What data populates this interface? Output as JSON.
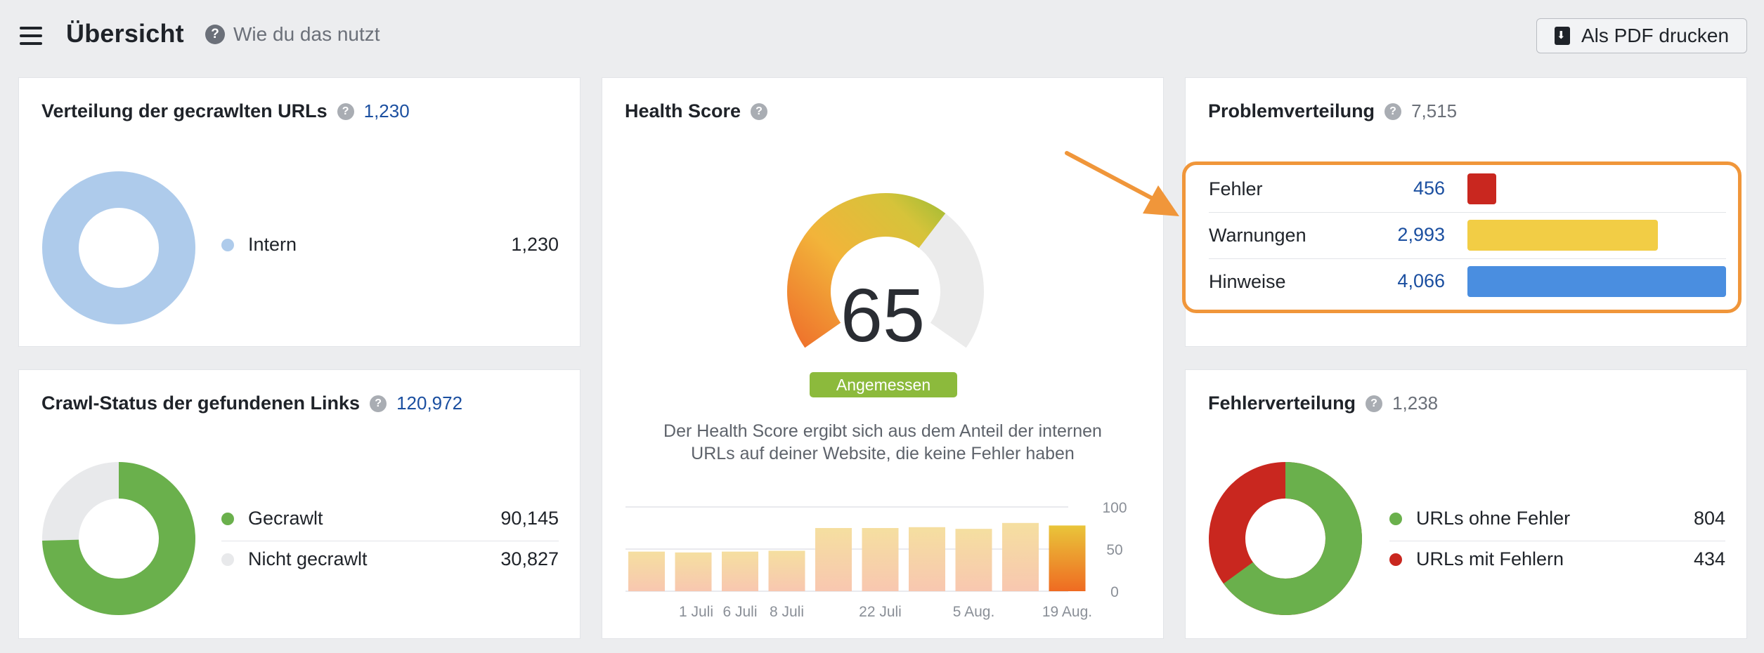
{
  "header": {
    "title": "Übersicht",
    "help_label": "Wie du das nutzt",
    "pdf_button_label": "Als PDF drucken"
  },
  "crawled_urls": {
    "title": "Verteilung der gecrawlten URLs",
    "count": "1,230",
    "legend": [
      {
        "label": "Intern",
        "value": "1,230",
        "color": "#aecbeb"
      }
    ]
  },
  "crawl_status": {
    "title": "Crawl-Status der gefundenen Links",
    "count": "120,972",
    "legend": [
      {
        "label": "Gecrawlt",
        "value": "90,145",
        "color": "#6ab04c"
      },
      {
        "label": "Nicht gecrawlt",
        "value": "30,827",
        "color": "#e8e9eb"
      }
    ]
  },
  "health": {
    "title": "Health Score",
    "score": "65",
    "score_value": 65,
    "badge": "Angemessen",
    "description_line1": "Der Health Score ergibt sich aus dem Anteil der internen",
    "description_line2": "URLs auf deiner Website, die keine Fehler haben",
    "gauge_fill_color": "#8cba3c"
  },
  "problems": {
    "title": "Problemverteilung",
    "count": "7,515",
    "rows": [
      {
        "label": "Fehler",
        "value": "456",
        "numeric": 456,
        "color": "#c9271f"
      },
      {
        "label": "Warnungen",
        "value": "2,993",
        "numeric": 2993,
        "color": "#f2cd45"
      },
      {
        "label": "Hinweise",
        "value": "4,066",
        "numeric": 4066,
        "color": "#4a8ee0"
      }
    ],
    "highlight_color": "#f0963a"
  },
  "errors": {
    "title": "Fehlerverteilung",
    "count": "1,238",
    "legend": [
      {
        "label": "URLs ohne Fehler",
        "value": "804",
        "color": "#6ab04c"
      },
      {
        "label": "URLs mit Fehlern",
        "value": "434",
        "color": "#c9271f"
      }
    ]
  },
  "chart_data": {
    "type": "bar",
    "categories": [
      "",
      "1 Juli",
      "6 Juli",
      "8 Juli",
      "",
      "22 Juli",
      "",
      "5 Aug.",
      "",
      "19 Aug."
    ],
    "x_tick_labels": [
      "1 Juli",
      "6 Juli",
      "8 Juli",
      "22 Juli",
      "5 Aug.",
      "19 Aug."
    ],
    "values": [
      47,
      46,
      47,
      48,
      75,
      75,
      76,
      74,
      81,
      78
    ],
    "ylim": [
      0,
      100
    ],
    "y_ticks": [
      "100",
      "50",
      "0"
    ]
  }
}
